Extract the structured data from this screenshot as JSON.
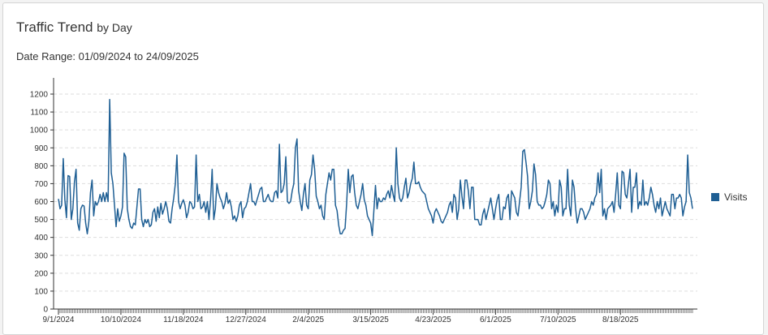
{
  "header": {
    "title_main": "Traffic Trend",
    "title_sub": "by Day",
    "date_range": "Date Range: 01/09/2024 to 24/09/2025"
  },
  "colors": {
    "series": "#1f5f94",
    "grid": "#dddddd",
    "axis": "#333333"
  },
  "chart_data": {
    "type": "line",
    "title": "Traffic Trend by Day",
    "xlabel": "",
    "ylabel": "",
    "ylim": [
      0,
      1200
    ],
    "yticks": [
      0,
      100,
      200,
      300,
      400,
      500,
      600,
      700,
      800,
      900,
      1000,
      1100,
      1200
    ],
    "xticks": [
      "9/1/2024",
      "10/10/2024",
      "11/18/2024",
      "12/27/2024",
      "2/4/2025",
      "3/15/2025",
      "4/23/2025",
      "6/1/2025",
      "7/10/2025",
      "8/18/2025"
    ],
    "grid": true,
    "legend_position": "right",
    "x_start": "9/1/2024",
    "x_end": "9/24/2025",
    "series": [
      {
        "name": "Visits",
        "values": [
          615,
          560,
          580,
          840,
          610,
          510,
          745,
          740,
          500,
          560,
          710,
          780,
          480,
          440,
          560,
          580,
          575,
          480,
          420,
          490,
          650,
          720,
          520,
          600,
          580,
          600,
          640,
          600,
          650,
          600,
          650,
          600,
          1170,
          760,
          700,
          580,
          460,
          560,
          490,
          520,
          570,
          870,
          850,
          560,
          500,
          460,
          450,
          480,
          470,
          570,
          670,
          670,
          500,
          460,
          500,
          480,
          500,
          460,
          470,
          540,
          560,
          490,
          570,
          510,
          590,
          530,
          560,
          600,
          560,
          490,
          480,
          560,
          620,
          700,
          860,
          600,
          560,
          590,
          610,
          580,
          510,
          540,
          600,
          590,
          560,
          570,
          860,
          600,
          640,
          560,
          570,
          600,
          540,
          600,
          500,
          610,
          780,
          500,
          560,
          700,
          650,
          620,
          600,
          560,
          590,
          650,
          590,
          610,
          570,
          500,
          520,
          490,
          520,
          580,
          600,
          510,
          560,
          570,
          600,
          650,
          700,
          600,
          600,
          580,
          610,
          640,
          670,
          680,
          600,
          600,
          620,
          640,
          610,
          600,
          600,
          650,
          660,
          620,
          920,
          650,
          660,
          700,
          850,
          600,
          590,
          600,
          660,
          700,
          900,
          950,
          660,
          600,
          550,
          640,
          700,
          580,
          560,
          720,
          750,
          860,
          780,
          630,
          600,
          560,
          580,
          520,
          500,
          640,
          700,
          760,
          720,
          780,
          780,
          580,
          550,
          470,
          420,
          420,
          440,
          450,
          590,
          780,
          650,
          740,
          750,
          650,
          580,
          560,
          600,
          640,
          700,
          610,
          580,
          520,
          500,
          480,
          410,
          550,
          690,
          560,
          620,
          600,
          600,
          620,
          610,
          640,
          660,
          620,
          690,
          640,
          600,
          900,
          700,
          620,
          600,
          620,
          680,
          730,
          620,
          650,
          700,
          730,
          820,
          700,
          700,
          710,
          680,
          660,
          650,
          640,
          600,
          560,
          540,
          520,
          480,
          540,
          560,
          540,
          520,
          490,
          480,
          500,
          520,
          540,
          580,
          600,
          540,
          640,
          620,
          500,
          560,
          720,
          630,
          560,
          720,
          720,
          660,
          560,
          680,
          680,
          500,
          500,
          500,
          470,
          470,
          530,
          560,
          500,
          540,
          580,
          620,
          560,
          500,
          560,
          610,
          640,
          500,
          500,
          570,
          560,
          620,
          640,
          500,
          660,
          640,
          620,
          540,
          520,
          600,
          680,
          880,
          890,
          820,
          740,
          560,
          600,
          660,
          810,
          750,
          600,
          580,
          580,
          560,
          570,
          600,
          640,
          720,
          700,
          560,
          600,
          520,
          580,
          540,
          720,
          680,
          520,
          560,
          560,
          780,
          580,
          520,
          720,
          680,
          560,
          480,
          520,
          560,
          560,
          540,
          500,
          520,
          540,
          560,
          600,
          580,
          620,
          640,
          760,
          650,
          780,
          520,
          560,
          500,
          560,
          570,
          580,
          600,
          540,
          640,
          760,
          580,
          560,
          770,
          760,
          640,
          620,
          700,
          780,
          540,
          680,
          680,
          760,
          560,
          600,
          580,
          720,
          580,
          600,
          580,
          620,
          680,
          640,
          580,
          540,
          600,
          560,
          620,
          520,
          560,
          600,
          560,
          540,
          520,
          640,
          640,
          560,
          620,
          620,
          640,
          620,
          520,
          570,
          600,
          860,
          650,
          620,
          560
        ]
      }
    ]
  }
}
